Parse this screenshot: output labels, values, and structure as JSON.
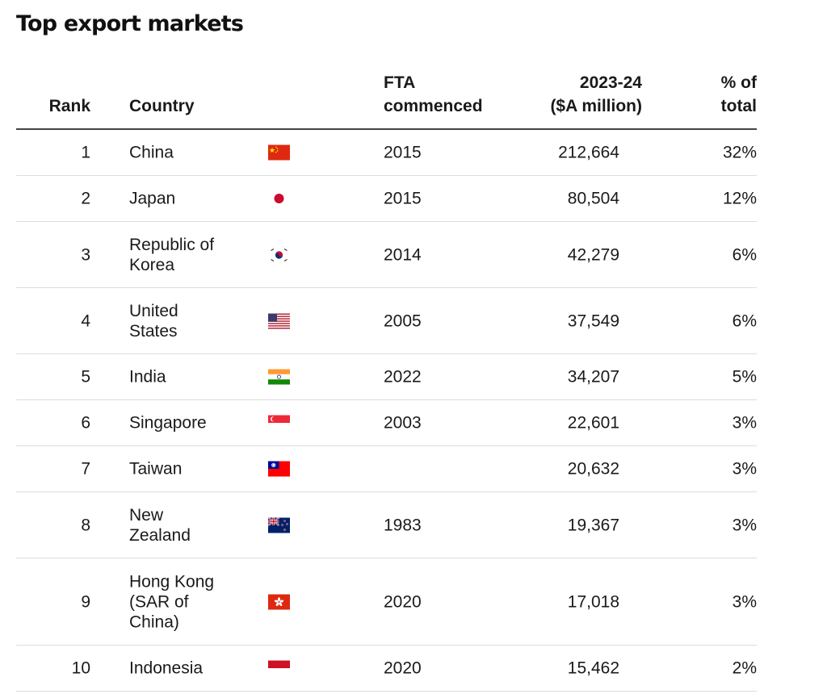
{
  "title": "Top export markets",
  "headers": {
    "rank": "Rank",
    "country": "Country",
    "fta_line1": "FTA",
    "fta_line2": "commenced",
    "value_line1": "2023-24",
    "value_line2": "($A million)",
    "pct_line1": "% of",
    "pct_line2": "total"
  },
  "rows": [
    {
      "rank": "1",
      "country_lines": [
        "China"
      ],
      "flag": "china-flag-icon",
      "fta": "2015",
      "value": "212,664",
      "pct": "32%"
    },
    {
      "rank": "2",
      "country_lines": [
        "Japan"
      ],
      "flag": "japan-flag-icon",
      "fta": "2015",
      "value": "80,504",
      "pct": "12%"
    },
    {
      "rank": "3",
      "country_lines": [
        "Republic of",
        "Korea"
      ],
      "flag": "korea-flag-icon",
      "fta": "2014",
      "value": "42,279",
      "pct": "6%"
    },
    {
      "rank": "4",
      "country_lines": [
        "United",
        "States"
      ],
      "flag": "usa-flag-icon",
      "fta": "2005",
      "value": "37,549",
      "pct": "6%"
    },
    {
      "rank": "5",
      "country_lines": [
        "India"
      ],
      "flag": "india-flag-icon",
      "fta": "2022",
      "value": "34,207",
      "pct": "5%"
    },
    {
      "rank": "6",
      "country_lines": [
        "Singapore"
      ],
      "flag": "singapore-flag-icon",
      "fta": "2003",
      "value": "22,601",
      "pct": "3%"
    },
    {
      "rank": "7",
      "country_lines": [
        "Taiwan"
      ],
      "flag": "taiwan-flag-icon",
      "fta": "",
      "value": "20,632",
      "pct": "3%"
    },
    {
      "rank": "8",
      "country_lines": [
        "New",
        "Zealand"
      ],
      "flag": "new-zealand-flag-icon",
      "fta": "1983",
      "value": "19,367",
      "pct": "3%"
    },
    {
      "rank": "9",
      "country_lines": [
        "Hong Kong",
        "(SAR of",
        "China)"
      ],
      "flag": "hong-kong-flag-icon",
      "fta": "2020",
      "value": "17,018",
      "pct": "3%"
    },
    {
      "rank": "10",
      "country_lines": [
        "Indonesia"
      ],
      "flag": "indonesia-flag-icon",
      "fta": "2020",
      "value": "15,462",
      "pct": "2%"
    }
  ],
  "colors": {
    "text": "#1a1a1a",
    "rule": "#444444",
    "row_divider": "#dcdcdc"
  }
}
